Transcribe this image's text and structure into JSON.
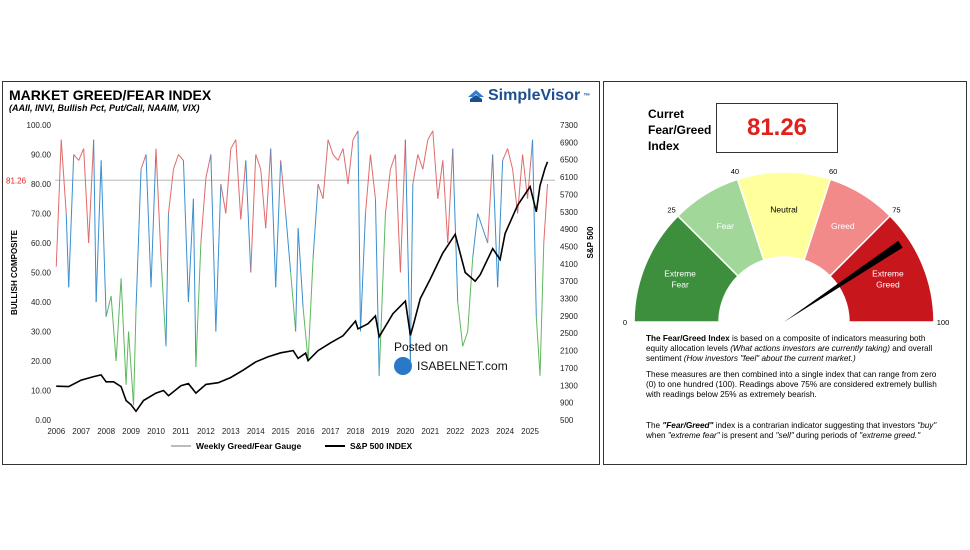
{
  "left": {
    "title": "MARKET GREED/FEAR INDEX",
    "subtitle": "(AAII, INVI, Bullish Pct, Put/Call, NAAIM, VIX)",
    "brand": "SimpleVisor",
    "brand_tm": "™",
    "watermark_posted": "Posted on",
    "watermark_site": "ISABELNET.com"
  },
  "chart_data": {
    "type": "line",
    "title": "MARKET GREED/FEAR INDEX",
    "ylabel_left": "BULLISH COMPOSITE",
    "ylabel_right": "S&P 500",
    "xlabel": "",
    "x_ticks": [
      "2006",
      "2007",
      "2008",
      "2009",
      "2010",
      "2011",
      "2012",
      "2013",
      "2014",
      "2015",
      "2016",
      "2017",
      "2018",
      "2019",
      "2020",
      "2021",
      "2022",
      "2023",
      "2024",
      "2025"
    ],
    "y_left_ticks": [
      "100.00",
      "90.00",
      "80.00",
      "70.00",
      "60.00",
      "50.00",
      "40.00",
      "30.00",
      "20.00",
      "10.00",
      "0.00"
    ],
    "y_right_ticks": [
      "7300",
      "6900",
      "6500",
      "6100",
      "5700",
      "5300",
      "4900",
      "4500",
      "4100",
      "3700",
      "3300",
      "2900",
      "2500",
      "2100",
      "1700",
      "1300",
      "900",
      "500"
    ],
    "ylim_left": [
      0,
      100
    ],
    "ylim_right": [
      500,
      7300
    ],
    "xlim": [
      2005.95,
      2026.0
    ],
    "current_value_label": "81.26",
    "current_value": 81.26,
    "legend": [
      "Weekly Greed/Fear Gauge",
      "S&P 500 INDEX"
    ],
    "series": [
      {
        "name": "Weekly Greed/Fear Gauge",
        "axis": "left",
        "x": [
          2006.0,
          2006.2,
          2006.4,
          2006.5,
          2006.7,
          2006.9,
          2007.1,
          2007.3,
          2007.5,
          2007.6,
          2007.8,
          2008.0,
          2008.2,
          2008.4,
          2008.6,
          2008.8,
          2008.9,
          2009.1,
          2009.2,
          2009.4,
          2009.6,
          2009.8,
          2010.0,
          2010.2,
          2010.4,
          2010.5,
          2010.7,
          2010.9,
          2011.1,
          2011.3,
          2011.5,
          2011.6,
          2011.8,
          2012.0,
          2012.2,
          2012.4,
          2012.6,
          2012.8,
          2013.0,
          2013.2,
          2013.4,
          2013.6,
          2013.8,
          2014.0,
          2014.2,
          2014.4,
          2014.6,
          2014.8,
          2015.0,
          2015.2,
          2015.4,
          2015.6,
          2015.7,
          2015.9,
          2016.1,
          2016.3,
          2016.5,
          2016.7,
          2016.9,
          2017.1,
          2017.3,
          2017.5,
          2017.7,
          2017.9,
          2018.1,
          2018.2,
          2018.4,
          2018.6,
          2018.8,
          2018.95,
          2019.2,
          2019.4,
          2019.6,
          2019.8,
          2020.0,
          2020.2,
          2020.3,
          2020.5,
          2020.7,
          2020.9,
          2021.1,
          2021.3,
          2021.5,
          2021.7,
          2021.9,
          2022.1,
          2022.3,
          2022.5,
          2022.7,
          2022.9,
          2023.1,
          2023.3,
          2023.5,
          2023.7,
          2023.9,
          2024.1,
          2024.3,
          2024.5,
          2024.7,
          2024.9,
          2025.1,
          2025.25,
          2025.4,
          2025.55,
          2025.7
        ],
        "y": [
          52,
          95,
          70,
          45,
          90,
          88,
          92,
          60,
          95,
          40,
          88,
          35,
          42,
          20,
          48,
          12,
          30,
          5,
          38,
          85,
          90,
          45,
          92,
          55,
          25,
          70,
          85,
          90,
          88,
          40,
          75,
          18,
          60,
          82,
          90,
          30,
          80,
          70,
          92,
          95,
          68,
          88,
          50,
          90,
          85,
          65,
          92,
          45,
          88,
          70,
          50,
          30,
          65,
          38,
          20,
          55,
          80,
          75,
          95,
          90,
          88,
          92,
          80,
          95,
          98,
          30,
          70,
          90,
          75,
          15,
          70,
          85,
          90,
          50,
          95,
          20,
          80,
          90,
          85,
          95,
          98,
          75,
          88,
          60,
          92,
          40,
          25,
          30,
          55,
          70,
          65,
          60,
          90,
          45,
          88,
          92,
          85,
          70,
          90,
          75,
          95,
          35,
          15,
          60,
          80
        ]
      },
      {
        "name": "S&P 500 INDEX",
        "axis": "right",
        "x": [
          2006.0,
          2006.5,
          2007.0,
          2007.5,
          2007.8,
          2008.0,
          2008.3,
          2008.6,
          2008.8,
          2009.0,
          2009.2,
          2009.5,
          2010.0,
          2010.3,
          2010.5,
          2011.0,
          2011.3,
          2011.6,
          2012.0,
          2012.5,
          2013.0,
          2013.5,
          2014.0,
          2014.5,
          2015.0,
          2015.5,
          2015.7,
          2016.0,
          2016.1,
          2016.5,
          2017.0,
          2017.5,
          2018.0,
          2018.1,
          2018.5,
          2018.8,
          2018.95,
          2019.5,
          2020.0,
          2020.2,
          2020.3,
          2020.6,
          2021.0,
          2021.5,
          2022.0,
          2022.4,
          2022.8,
          2023.0,
          2023.5,
          2023.8,
          2024.0,
          2024.5,
          2025.0,
          2025.25,
          2025.4,
          2025.6,
          2025.7
        ],
        "y": [
          1280,
          1270,
          1420,
          1500,
          1540,
          1380,
          1380,
          1270,
          950,
          850,
          700,
          950,
          1120,
          1180,
          1060,
          1290,
          1340,
          1120,
          1320,
          1360,
          1480,
          1650,
          1840,
          1960,
          2050,
          2100,
          1920,
          2040,
          1870,
          2100,
          2280,
          2440,
          2780,
          2600,
          2720,
          2900,
          2420,
          2950,
          3240,
          2450,
          2650,
          3300,
          3750,
          4350,
          4780,
          3900,
          3700,
          3850,
          4450,
          4200,
          4800,
          5450,
          5880,
          5300,
          5900,
          6300,
          6450
        ]
      }
    ],
    "color_bands": [
      {
        "label": "greed",
        "color": "#e06a6a",
        "above": 70
      },
      {
        "label": "neutral",
        "color": "#3a8fcf",
        "between": [
          45,
          70
        ]
      },
      {
        "label": "fear",
        "color": "#5db85d",
        "below": 45
      }
    ]
  },
  "gauge": {
    "label_lines": [
      "Curret",
      "Fear/Greed",
      "Index"
    ],
    "value_text": "81.26",
    "value": 81.26,
    "scale": [
      "0",
      "25",
      "40",
      "60",
      "75",
      "100"
    ],
    "segments": [
      {
        "name": "Extreme Fear",
        "lines": [
          "Extreme",
          "Fear"
        ],
        "from": 0,
        "to": 25,
        "color": "#3d8f3d",
        "text_color": "#ffffff"
      },
      {
        "name": "Fear",
        "lines": [
          "Fear"
        ],
        "from": 25,
        "to": 40,
        "color": "#a1d89a",
        "text_color": "#ffffff"
      },
      {
        "name": "Neutral",
        "lines": [
          "Neutral"
        ],
        "from": 40,
        "to": 60,
        "color": "#ffff9c",
        "text_color": "#000000"
      },
      {
        "name": "Greed",
        "lines": [
          "Greed"
        ],
        "from": 60,
        "to": 75,
        "color": "#f28a8a",
        "text_color": "#ffffff"
      },
      {
        "name": "Extreme Greed",
        "lines": [
          "Extreme",
          "Greed"
        ],
        "from": 75,
        "to": 100,
        "color": "#c8161d",
        "text_color": "#ffffff"
      }
    ]
  },
  "description": {
    "p1_bold": "The Fear/Greed Index",
    "p1_a": " is based on a composite of indicators measuring both equity allocation levels ",
    "p1_i1": "(What actions investors are currently taking)",
    "p1_b": " and overall sentiment ",
    "p1_i2": "(How investors \"feel\" about the current market.)",
    "p2": "These measures are then combined into a single index that can range from zero (0) to one hundred (100). Readings above 75% are considered extremely bullish with readings below 25% as extremely bearish.",
    "p3_a": "The ",
    "p3_bi": "\"Fear/Greed\"",
    "p3_b": " index is a contrarian indicator suggesting that investors ",
    "p3_i1": "\"buy\"",
    "p3_c": " when ",
    "p3_i2": "\"extreme fear\"",
    "p3_d": " is present and ",
    "p3_i3": "\"sell\"",
    "p3_e": " during periods of ",
    "p3_i4": "\"extreme greed.\""
  }
}
